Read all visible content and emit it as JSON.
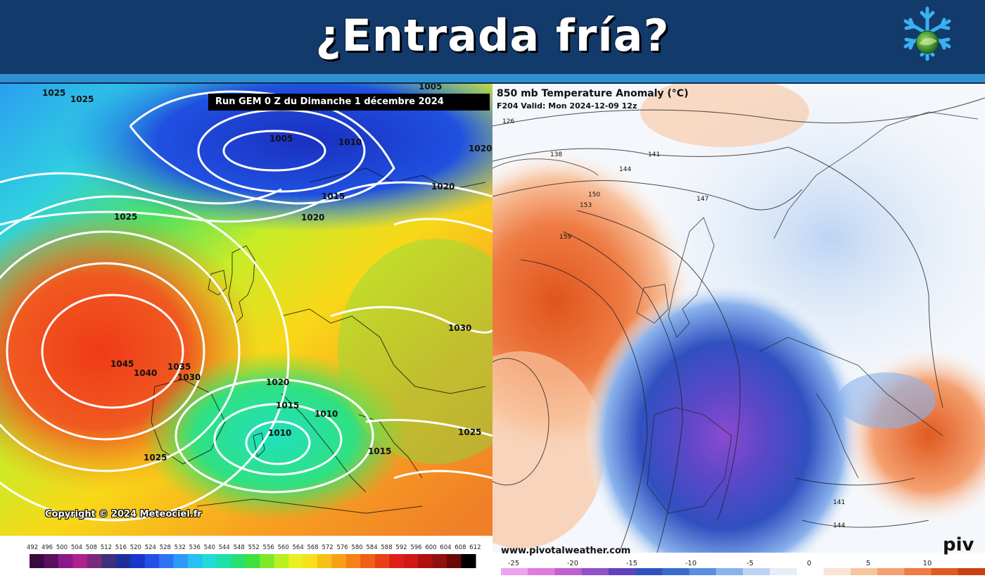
{
  "header": {
    "title": "¿Entrada fría?"
  },
  "left_map": {
    "run_label": "Run GEM 0 Z du Dimanche 1 décembre 2024",
    "copyright": "Copyright © 2024 Meteociel.fr",
    "isobar_labels": [
      "1025",
      "1025",
      "1005",
      "1005",
      "1010",
      "1020",
      "1020",
      "1015",
      "1025",
      "1020",
      "1030",
      "1045",
      "1040",
      "1035",
      "1030",
      "1020",
      "1015",
      "1010",
      "1010",
      "1025",
      "1015",
      "1025"
    ],
    "legend_values": [
      "492",
      "496",
      "500",
      "504",
      "508",
      "512",
      "516",
      "520",
      "524",
      "528",
      "532",
      "536",
      "540",
      "544",
      "548",
      "552",
      "556",
      "560",
      "564",
      "568",
      "572",
      "576",
      "580",
      "584",
      "588",
      "592",
      "596",
      "600",
      "604",
      "608",
      "612"
    ],
    "legend_colors": [
      "#3a0a3e",
      "#5b0f5e",
      "#8a1a8a",
      "#b0208f",
      "#7a2a7a",
      "#3e2f7a",
      "#1f2f9a",
      "#1836c8",
      "#2450e8",
      "#2e74f2",
      "#2d9af5",
      "#28c0f0",
      "#20dcd8",
      "#1ee0a8",
      "#28e070",
      "#40e040",
      "#80e828",
      "#b8f020",
      "#e8f020",
      "#f8e018",
      "#f8c018",
      "#f8a018",
      "#f88018",
      "#f06018",
      "#e84018",
      "#e02018",
      "#d01818",
      "#b01010",
      "#901010",
      "#6a0808",
      "#000000"
    ]
  },
  "right_map": {
    "title": "850 mb Temperature Anomaly (°C)",
    "subtitle": "F204 Valid: Mon 2024-12-09 12z",
    "url": "www.pivotalweather.com",
    "brand": "piv",
    "contour_labels": [
      "126",
      "138",
      "141",
      "144",
      "147",
      "150",
      "153",
      "159",
      "141",
      "144"
    ],
    "legend_values": [
      "-25",
      "-20",
      "-15",
      "-10",
      "-5",
      "0",
      "5",
      "10"
    ],
    "legend_colors": [
      "#f0a0f0",
      "#e07ae0",
      "#c060d0",
      "#9050c8",
      "#6040c0",
      "#3050c0",
      "#3a6ad0",
      "#5a8ee0",
      "#8ab2ec",
      "#bcd4f4",
      "#e6eef8",
      "#ffffff",
      "#fbe4d4",
      "#f8c4a0",
      "#f4a070",
      "#ee7c44",
      "#e05a20",
      "#c84010"
    ]
  }
}
